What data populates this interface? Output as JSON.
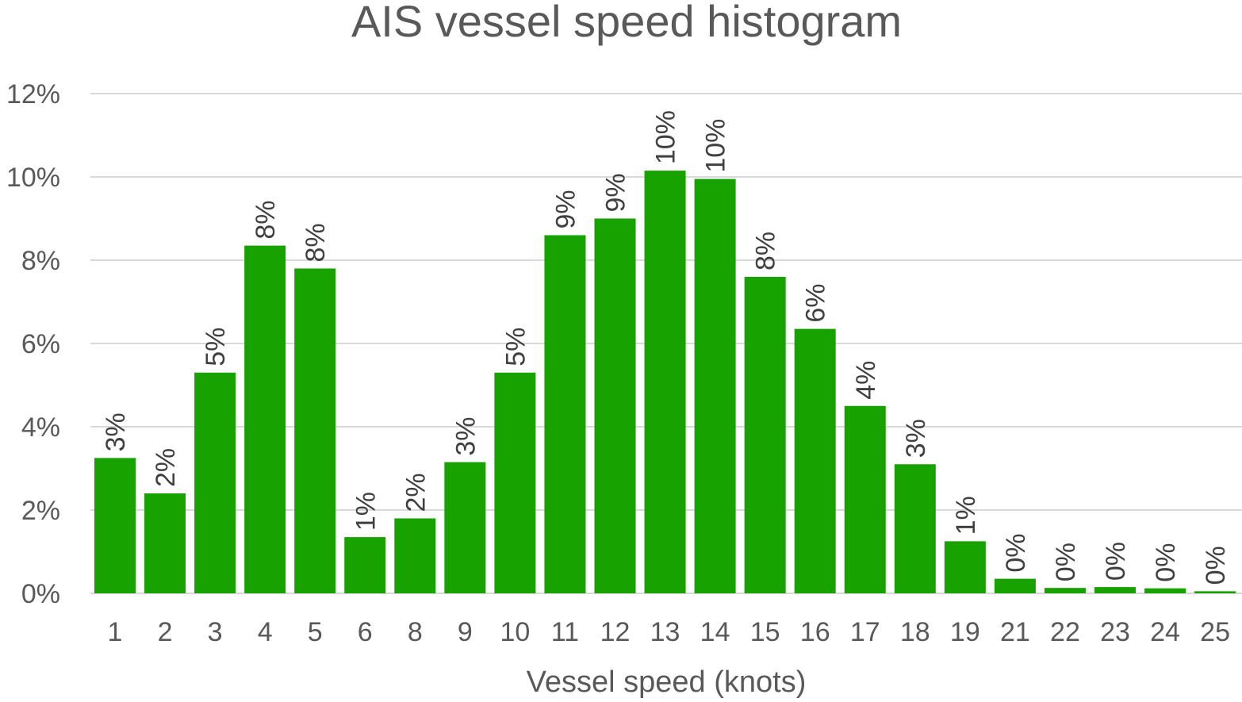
{
  "chart_data": {
    "type": "bar",
    "title": "AIS vessel speed histogram",
    "xlabel": "Vessel speed (knots)",
    "ylabel": "",
    "ylim": [
      0,
      12
    ],
    "yticks": [
      0,
      2,
      4,
      6,
      8,
      10,
      12
    ],
    "ytick_labels": [
      "0%",
      "2%",
      "4%",
      "6%",
      "8%",
      "10%",
      "12%"
    ],
    "grid": true,
    "bar_color": "#17a200",
    "categories": [
      "1",
      "2",
      "3",
      "4",
      "5",
      "6",
      "8",
      "9",
      "10",
      "11",
      "12",
      "13",
      "14",
      "15",
      "16",
      "17",
      "18",
      "19",
      "21",
      "22",
      "23",
      "24",
      "25"
    ],
    "values": [
      3.25,
      2.4,
      5.3,
      8.35,
      7.8,
      1.35,
      1.8,
      3.15,
      5.3,
      8.6,
      9.0,
      10.15,
      9.95,
      7.6,
      6.35,
      4.5,
      3.1,
      1.25,
      0.35,
      0.13,
      0.15,
      0.12,
      0.05
    ],
    "data_labels": [
      "3%",
      "2%",
      "5%",
      "8%",
      "8%",
      "1%",
      "2%",
      "3%",
      "5%",
      "9%",
      "9%",
      "10%",
      "10%",
      "8%",
      "6%",
      "4%",
      "3%",
      "1%",
      "0%",
      "0%",
      "0%",
      "0%",
      "0%"
    ]
  }
}
